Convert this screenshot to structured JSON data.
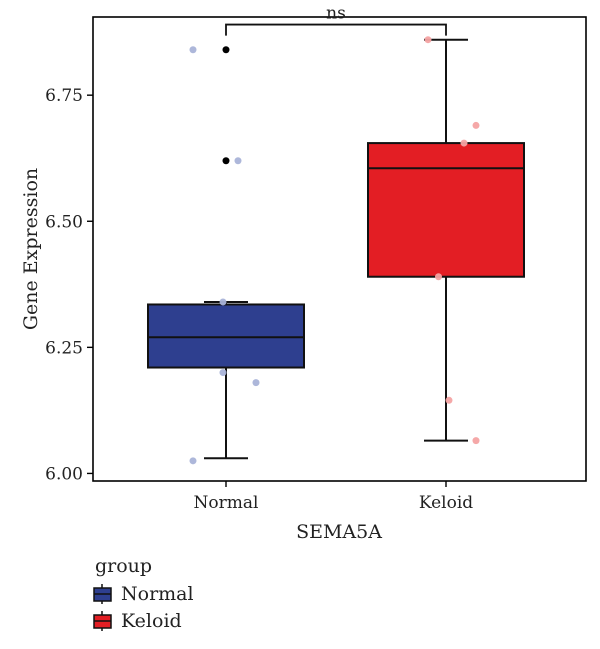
{
  "chart_data": {
    "type": "box",
    "xlabel": "SEMA5A",
    "ylabel": "Gene Expression",
    "ylim": [
      5.985,
      6.905
    ],
    "yticks": [
      6.0,
      6.25,
      6.5,
      6.75
    ],
    "ytick_labels": [
      "6.00",
      "6.25",
      "6.50",
      "6.75"
    ],
    "categories": [
      "Normal",
      "Keloid"
    ],
    "annotation": {
      "text": "ns",
      "between": [
        "Normal",
        "Keloid"
      ],
      "y": 6.89
    },
    "boxes": [
      {
        "name": "Normal",
        "color": "#2E3F8F",
        "point_color": "#A9B3D8",
        "outlier_color": "#000000",
        "whisker_low": 6.03,
        "q1": 6.21,
        "median": 6.27,
        "q3": 6.335,
        "whisker_high": 6.34,
        "outliers": [
          6.62,
          6.84
        ],
        "points": [
          {
            "dx": -0.22,
            "y": 6.84
          },
          {
            "dx": 0.08,
            "y": 6.62
          },
          {
            "dx": -0.02,
            "y": 6.2
          },
          {
            "dx": 0.2,
            "y": 6.18
          },
          {
            "dx": -0.22,
            "y": 6.025
          },
          {
            "dx": -0.02,
            "y": 6.34
          }
        ]
      },
      {
        "name": "Keloid",
        "color": "#E31E24",
        "point_color": "#F4A3A3",
        "outlier_color": "#000000",
        "whisker_low": 6.065,
        "q1": 6.39,
        "median": 6.605,
        "q3": 6.655,
        "whisker_high": 6.86,
        "outliers": [],
        "points": [
          {
            "dx": -0.12,
            "y": 6.86
          },
          {
            "dx": 0.2,
            "y": 6.69
          },
          {
            "dx": 0.12,
            "y": 6.655
          },
          {
            "dx": -0.05,
            "y": 6.39
          },
          {
            "dx": 0.02,
            "y": 6.145
          },
          {
            "dx": 0.2,
            "y": 6.065
          }
        ]
      }
    ],
    "legend": {
      "title": "group",
      "entries": [
        {
          "label": "Normal",
          "color": "#2E3F8F"
        },
        {
          "label": "Keloid",
          "color": "#E31E24"
        }
      ]
    }
  }
}
